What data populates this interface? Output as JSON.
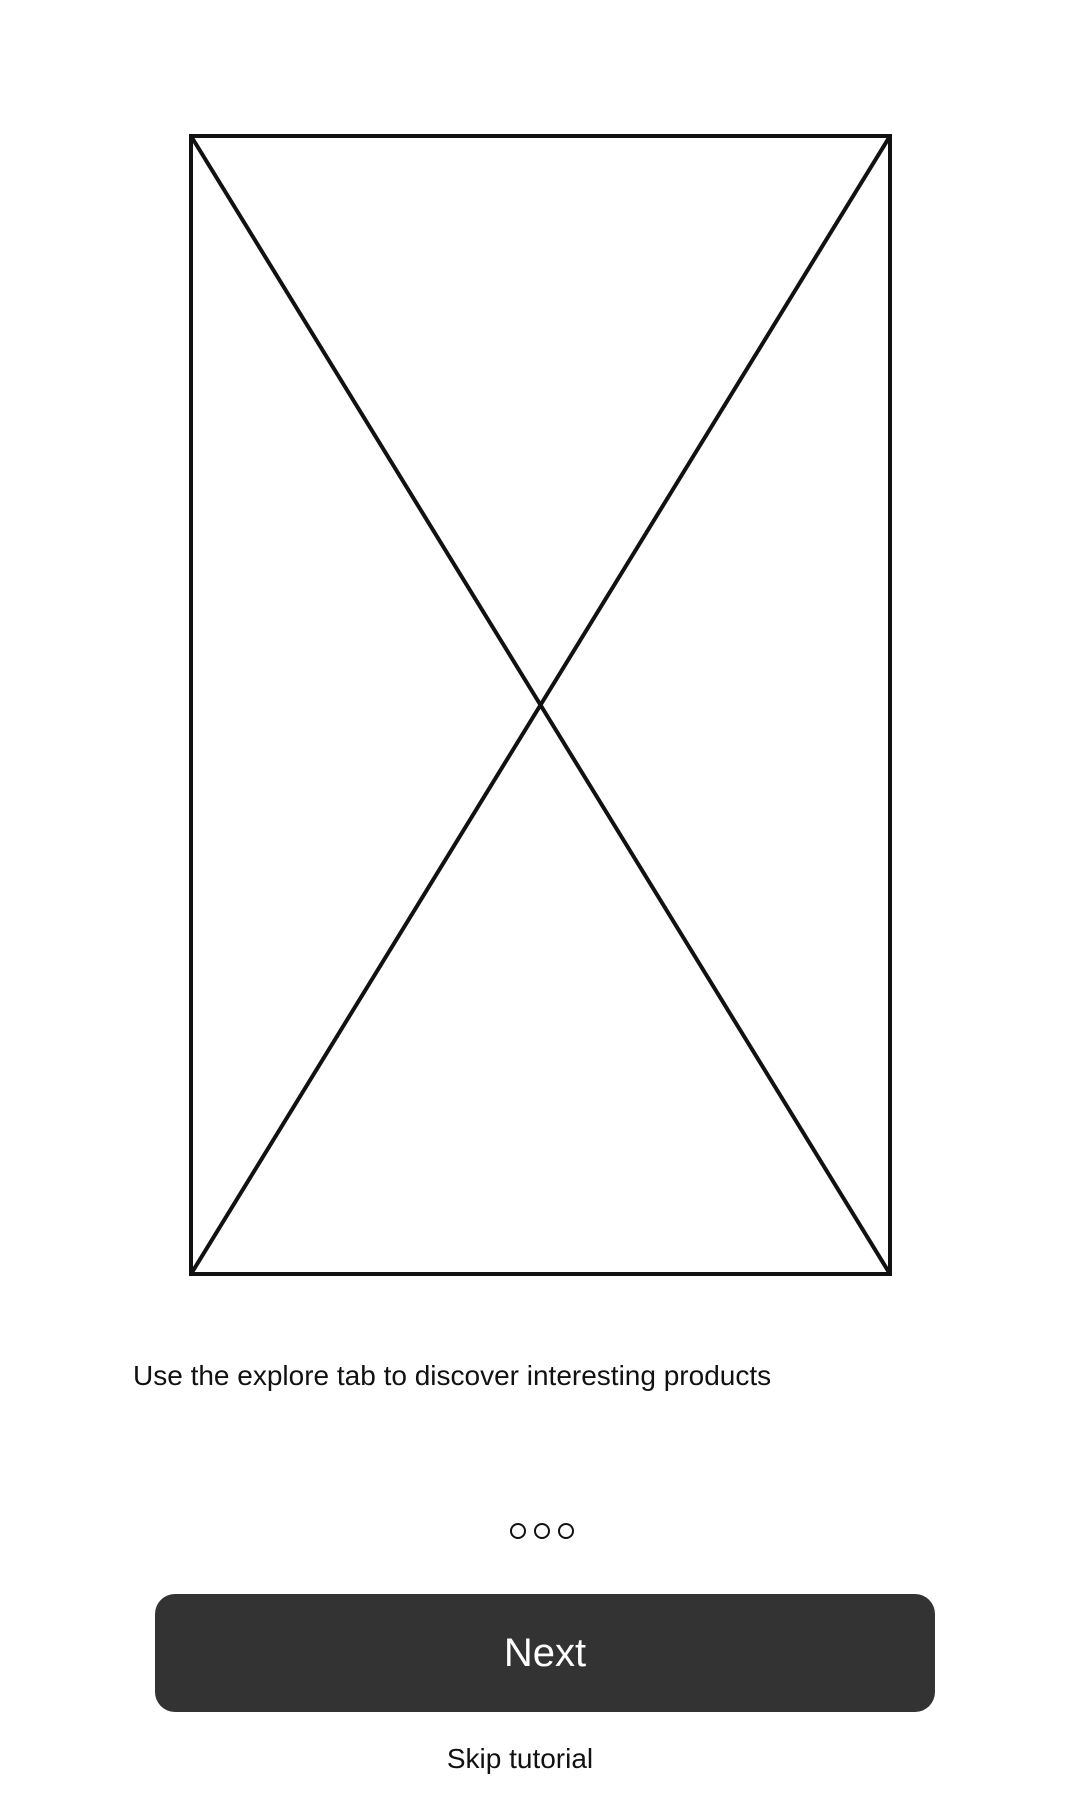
{
  "onboarding": {
    "image": {
      "icon": "image-placeholder-icon"
    },
    "description": "Use the explore tab to discover interesting products",
    "pager": {
      "total_pages": 3,
      "dots": [
        {
          "icon": "page-dot-icon"
        },
        {
          "icon": "page-dot-icon"
        },
        {
          "icon": "page-dot-icon"
        }
      ]
    },
    "next_label": "Next",
    "skip_label": "Skip tutorial"
  },
  "colors": {
    "button_background": "#333333",
    "button_text": "#ffffff",
    "text": "#111111",
    "background": "#ffffff",
    "placeholder_stroke": "#111111"
  }
}
